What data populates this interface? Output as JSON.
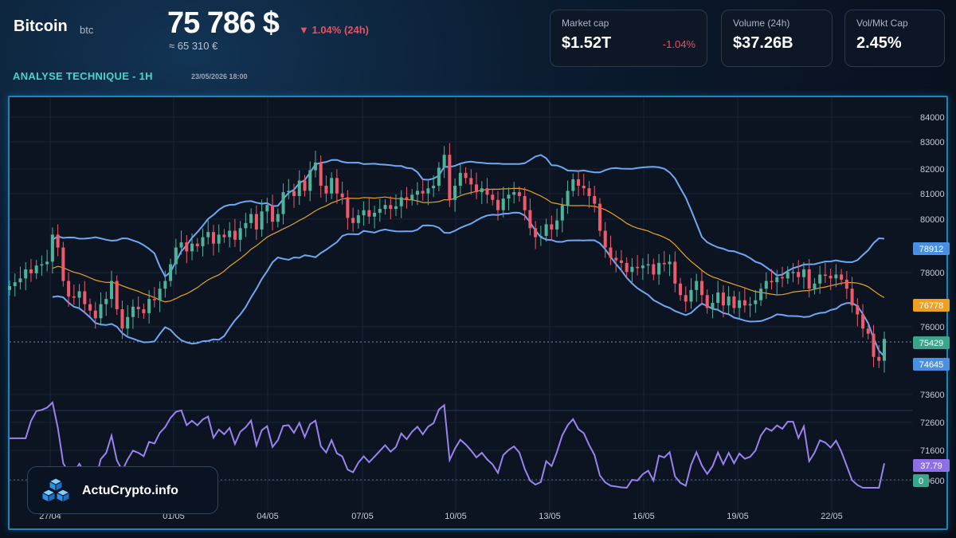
{
  "header": {
    "coin_name": "Bitcoin",
    "ticker": "btc",
    "price": "75 786 $",
    "price_eur": "≈ 65 310 €",
    "change": "▼ 1.04% (24h)",
    "analysis_label": "ANALYSE TECHNIQUE - 1H",
    "timestamp": "23/05/2026 18:00"
  },
  "cards": [
    {
      "label": "Market cap",
      "value": "$1.52T",
      "change": "-1.04%"
    },
    {
      "label": "Volume (24h)",
      "value": "$37.26B",
      "change": ""
    },
    {
      "label": "Vol/Mkt Cap",
      "value": "2.45%",
      "change": ""
    }
  ],
  "brand": {
    "name": "ActuCrypto.info"
  },
  "colors": {
    "up": "#4fb39a",
    "down": "#ef5a6a",
    "band": "#6ea8f2",
    "ma": "#e6a425",
    "rsi": "#9b82f0",
    "accent": "#3fd9c6"
  },
  "chart_data": {
    "type": "candlestick",
    "timeframe": "1H",
    "y_ticks": [
      84000,
      83000,
      82000,
      81000,
      80000,
      78000,
      76000,
      73600,
      72600,
      71600,
      70600
    ],
    "x_ticks": [
      "27/04",
      "01/05",
      "04/05",
      "07/05",
      "10/05",
      "13/05",
      "16/05",
      "19/05",
      "22/05"
    ],
    "price_labels": [
      {
        "value": "78912",
        "kind": "bollinger-upper"
      },
      {
        "value": "76778",
        "kind": "moving-average"
      },
      {
        "value": "75429",
        "kind": "last-price"
      },
      {
        "value": "74645",
        "kind": "bollinger-lower"
      }
    ],
    "rsi_labels": [
      {
        "value": "37.79",
        "kind": "rsi-current"
      },
      {
        "value": "0",
        "kind": "rsi-zero"
      }
    ],
    "close": [
      77400,
      77550,
      77700,
      78050,
      77900,
      78200,
      78250,
      78350,
      79400,
      78900,
      77600,
      77000,
      76950,
      77200,
      76700,
      76450,
      76150,
      76700,
      76900,
      77600,
      76500,
      75750,
      76200,
      76600,
      76500,
      76350,
      76900,
      76850,
      77300,
      77600,
      78250,
      78900,
      79100,
      78750,
      79050,
      78950,
      79300,
      79500,
      79050,
      79400,
      79300,
      79550,
      79200,
      79650,
      79850,
      80200,
      79600,
      80300,
      80550,
      79900,
      80200,
      81050,
      81100,
      80900,
      81500,
      81100,
      81900,
      82200,
      81300,
      81000,
      81600,
      81000,
      80850,
      80050,
      79850,
      80150,
      80350,
      80100,
      80250,
      80400,
      80550,
      80400,
      80500,
      80850,
      80750,
      80950,
      81100,
      81000,
      81200,
      81300,
      82000,
      82500,
      80750,
      81300,
      81800,
      81600,
      81350,
      81050,
      81200,
      80950,
      80750,
      80350,
      80800,
      80950,
      81050,
      80900,
      80350,
      79650,
      79300,
      79350,
      79800,
      79600,
      79950,
      80550,
      81100,
      81550,
      81300,
      81200,
      80900,
      80600,
      79550,
      78900,
      78500,
      78400,
      78300,
      77950,
      78150,
      78100,
      78200,
      78250,
      77850,
      78300,
      78250,
      78350,
      77500,
      77050,
      76800,
      77250,
      77600,
      77050,
      76550,
      76750,
      77150,
      76650,
      77000,
      76550,
      76850,
      76650,
      76700,
      76850,
      77300,
      77600,
      77550,
      77750,
      77700,
      77950,
      77950,
      77750,
      78050,
      77300,
      77500,
      77850,
      77800,
      77700,
      77850,
      77650,
      77300,
      76650,
      76300,
      75750,
      75550,
      74650,
      74500,
      75350
    ]
  }
}
